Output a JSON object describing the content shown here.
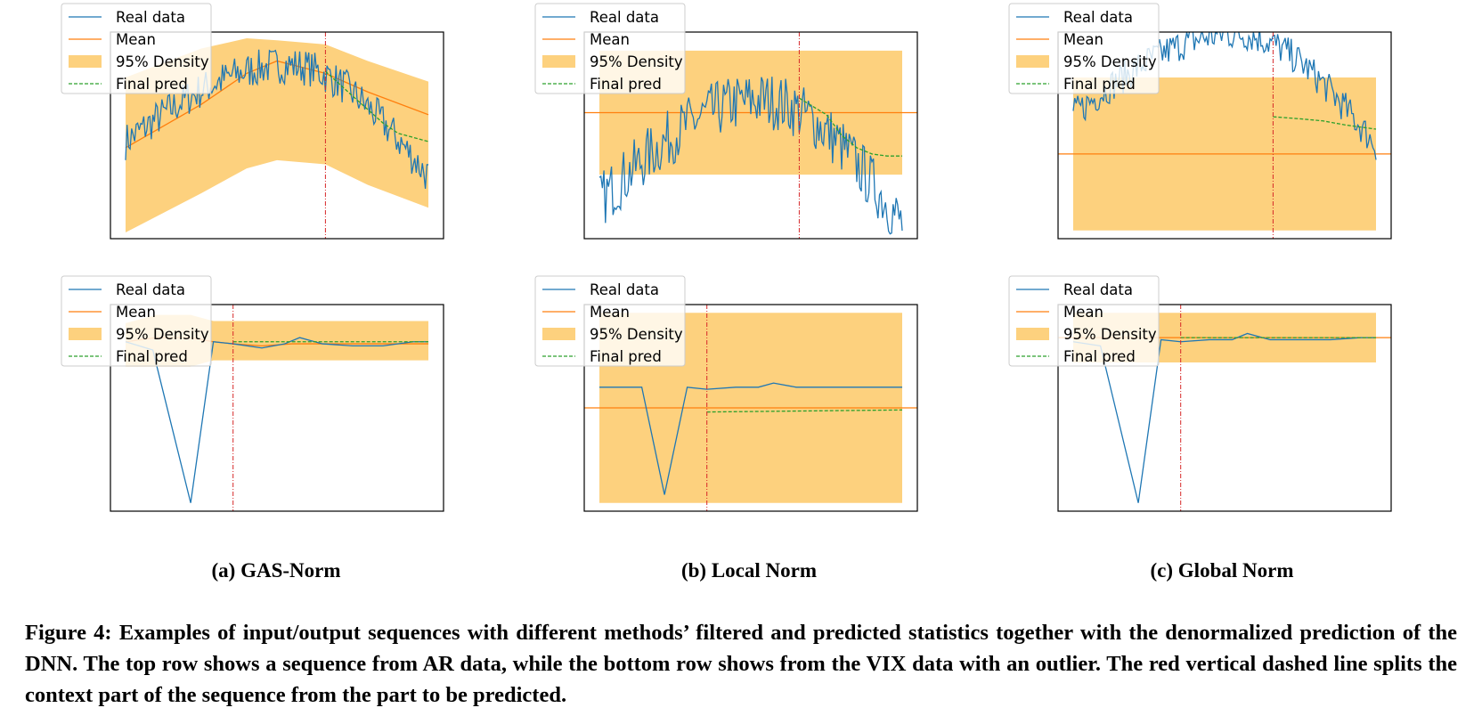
{
  "figure": {
    "label": "Figure 4:",
    "caption": "Examples of input/output sequences with different methods’ filtered and predicted statistics together with the denormalized prediction of the DNN. The top row shows a sequence from AR data, while the bottom row shows from the VIX data with an outlier. The red vertical dashed line splits the context part of the sequence from the part to be predicted.",
    "subcaptions": [
      "(a) GAS-Norm",
      "(b) Local Norm",
      "(c) Global Norm"
    ]
  },
  "legend": {
    "placement": "upper-left",
    "entries": [
      "Real data",
      "Mean",
      "95% Density",
      "Final pred"
    ]
  },
  "colors": {
    "real": "#1f77b4",
    "mean": "#ff7f0e",
    "density": "#fdd17e",
    "pred": "#2ca02c",
    "split": "#d62728"
  },
  "chart_data": [
    {
      "type": "line",
      "row": "top",
      "method": "GAS-Norm",
      "xlim": [
        0,
        220
      ],
      "ylim": [
        0,
        100
      ],
      "split_x": 142,
      "series": [
        {
          "name": "Real data",
          "generator": "ar",
          "start": 47,
          "end": 30,
          "peak": 117,
          "amp": 37,
          "noise": 9,
          "x": [
            10,
            210
          ]
        },
        {
          "name": "Mean",
          "x": [
            10,
            60,
            90,
            110,
            142,
            170,
            210
          ],
          "values": [
            44,
            65,
            80,
            86,
            80,
            71,
            60
          ]
        },
        {
          "name": "95% Density",
          "x": [
            10,
            60,
            90,
            110,
            142,
            170,
            210
          ],
          "lower": [
            3,
            22,
            34,
            38,
            36,
            26,
            15
          ],
          "upper": [
            78,
            92,
            97,
            96,
            94,
            86,
            76
          ]
        },
        {
          "name": "Final pred",
          "x": [
            142,
            160,
            180,
            190,
            200,
            210
          ],
          "values": [
            81,
            69,
            56,
            51,
            49,
            47
          ]
        }
      ]
    },
    {
      "type": "line",
      "row": "top",
      "method": "Local Norm",
      "xlim": [
        0,
        220
      ],
      "ylim": [
        0,
        100
      ],
      "split_x": 142,
      "series": [
        {
          "name": "Real data",
          "generator": "ar",
          "start": 18,
          "end": 7,
          "peak": 117,
          "amp": 49,
          "noise": 14,
          "x": [
            10,
            210
          ]
        },
        {
          "name": "Mean",
          "x": [
            0,
            220
          ],
          "values": [
            61,
            61
          ]
        },
        {
          "name": "95% Density",
          "x": [
            10,
            210
          ],
          "lower": [
            31,
            31
          ],
          "upper": [
            91,
            91
          ]
        },
        {
          "name": "Final pred",
          "x": [
            142,
            160,
            170,
            180,
            190,
            200,
            210
          ],
          "values": [
            68,
            60,
            50,
            44,
            41,
            40,
            40
          ]
        }
      ]
    },
    {
      "type": "line",
      "row": "top",
      "method": "Global Norm",
      "xlim": [
        0,
        220
      ],
      "ylim": [
        0,
        100
      ],
      "split_x": 142,
      "series": [
        {
          "name": "Real data",
          "generator": "ar",
          "start": 60,
          "end": 45,
          "peak": 117,
          "amp": 39,
          "noise": 8,
          "x": [
            10,
            210
          ]
        },
        {
          "name": "Mean",
          "x": [
            0,
            220
          ],
          "values": [
            41,
            41
          ]
        },
        {
          "name": "95% Density",
          "x": [
            10,
            210
          ],
          "lower": [
            4,
            4
          ],
          "upper": [
            78,
            78
          ]
        },
        {
          "name": "Final pred",
          "x": [
            142,
            160,
            175,
            190,
            200,
            210
          ],
          "values": [
            59,
            58,
            57,
            55,
            54,
            53
          ]
        }
      ]
    },
    {
      "type": "line",
      "row": "bottom",
      "method": "GAS-Norm",
      "xlim": [
        0,
        220
      ],
      "ylim": [
        0,
        100
      ],
      "split_x": 81,
      "series": [
        {
          "name": "Real data",
          "x": [
            10,
            28,
            53,
            68,
            81,
            100,
            115,
            125,
            140,
            160,
            180,
            200,
            210
          ],
          "values": [
            82,
            78,
            4,
            82,
            81,
            79,
            81,
            84,
            81,
            80,
            80,
            82,
            82
          ]
        },
        {
          "name": "Mean",
          "x": [
            10,
            30,
            53,
            68,
            81,
            100,
            120,
            150,
            180,
            210
          ],
          "values": [
            82,
            84,
            84,
            82,
            81,
            80,
            81,
            81,
            81,
            81
          ]
        },
        {
          "name": "95% Density",
          "x": [
            10,
            30,
            53,
            68,
            81,
            100,
            210
          ],
          "lower": [
            70,
            70,
            70,
            73,
            73,
            73,
            73
          ],
          "upper": [
            91,
            95,
            95,
            92,
            92,
            92,
            92
          ]
        },
        {
          "name": "Final pred",
          "x": [
            81,
            210
          ],
          "values": [
            82,
            82
          ]
        }
      ]
    },
    {
      "type": "line",
      "row": "bottom",
      "method": "Local Norm",
      "xlim": [
        0,
        220
      ],
      "ylim": [
        0,
        100
      ],
      "split_x": 81,
      "series": [
        {
          "name": "Real data",
          "x": [
            10,
            25,
            38,
            53,
            68,
            81,
            100,
            115,
            125,
            140,
            160,
            180,
            200,
            210
          ],
          "values": [
            60,
            60,
            60,
            8,
            60,
            59,
            60,
            60,
            62,
            60,
            60,
            60,
            60,
            60
          ]
        },
        {
          "name": "Mean",
          "x": [
            0,
            220
          ],
          "values": [
            50,
            50
          ]
        },
        {
          "name": "95% Density",
          "x": [
            10,
            210
          ],
          "lower": [
            4,
            4
          ],
          "upper": [
            96,
            96
          ]
        },
        {
          "name": "Final pred",
          "x": [
            81,
            210
          ],
          "values": [
            48,
            49
          ]
        }
      ]
    },
    {
      "type": "line",
      "row": "bottom",
      "method": "Global Norm",
      "xlim": [
        0,
        220
      ],
      "ylim": [
        0,
        100
      ],
      "split_x": 81,
      "series": [
        {
          "name": "Real data",
          "x": [
            10,
            28,
            53,
            68,
            81,
            100,
            115,
            125,
            140,
            160,
            180,
            200,
            210
          ],
          "values": [
            82,
            80,
            4,
            83,
            82,
            83,
            83,
            86,
            83,
            83,
            83,
            84,
            84
          ]
        },
        {
          "name": "Mean",
          "x": [
            0,
            220
          ],
          "values": [
            84,
            84
          ]
        },
        {
          "name": "95% Density",
          "x": [
            10,
            210
          ],
          "lower": [
            72,
            72
          ],
          "upper": [
            96,
            96
          ]
        },
        {
          "name": "Final pred",
          "x": [
            81,
            210
          ],
          "values": [
            84,
            84
          ]
        }
      ]
    }
  ]
}
